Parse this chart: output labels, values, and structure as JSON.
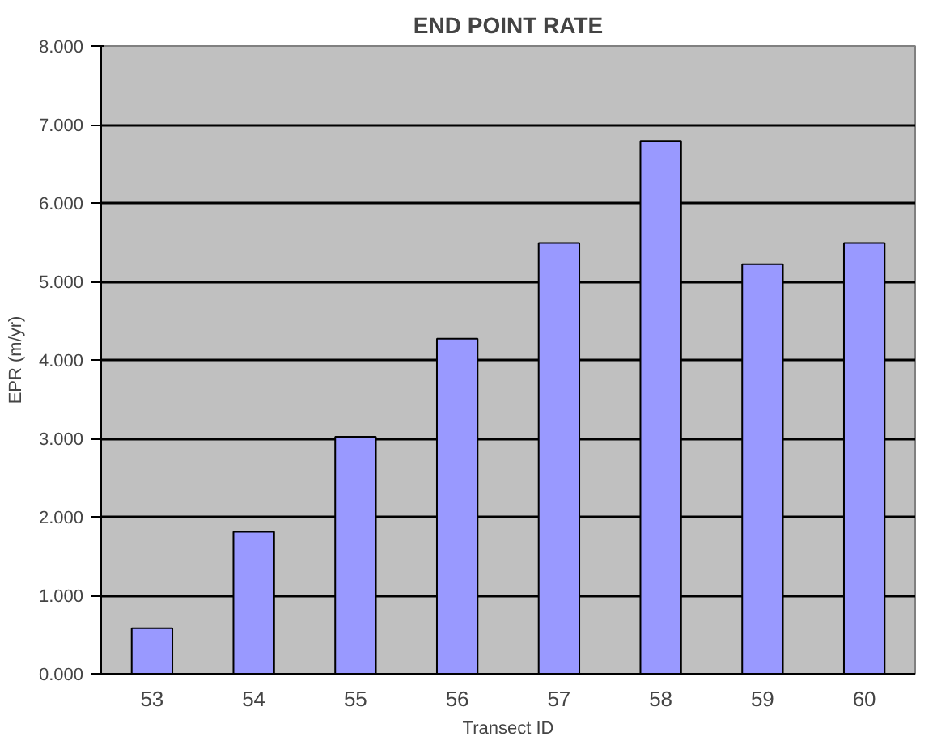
{
  "chart_data": {
    "type": "bar",
    "title": "END POINT RATE",
    "xlabel": "Transect ID",
    "ylabel": "EPR (m/yr)",
    "categories": [
      "53",
      "54",
      "55",
      "56",
      "57",
      "58",
      "59",
      "60"
    ],
    "values": [
      0.58,
      1.81,
      3.02,
      4.27,
      5.49,
      6.79,
      5.22,
      5.49
    ],
    "color": "#9999ff",
    "ylim": [
      0,
      8
    ],
    "yticks": [
      {
        "value": 0,
        "label": "0.000"
      },
      {
        "value": 1,
        "label": "1.000"
      },
      {
        "value": 2,
        "label": "2.000"
      },
      {
        "value": 3,
        "label": "3.000"
      },
      {
        "value": 4,
        "label": "4.000"
      },
      {
        "value": 5,
        "label": "5.000"
      },
      {
        "value": 6,
        "label": "6.000"
      },
      {
        "value": 7,
        "label": "7.000"
      },
      {
        "value": 8,
        "label": "8.000"
      }
    ],
    "grid": "y"
  }
}
